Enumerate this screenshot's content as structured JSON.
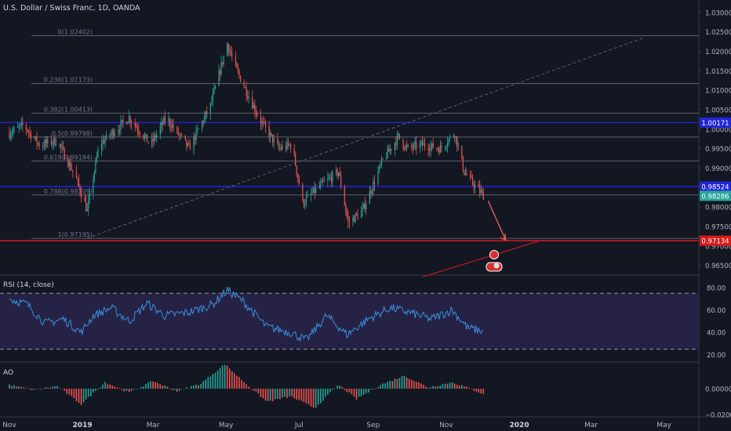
{
  "header": {
    "title": "U.S. Dollar / Swiss Franc, 1D, OANDA"
  },
  "colors": {
    "background": "#131722",
    "grid": "#1e2230",
    "up": "#26a69a",
    "down": "#ef5350",
    "fib": "#787b86",
    "fib_label": "#6f7490",
    "hline_blue": "#2124d9",
    "hline_red": "#d81919",
    "trendline_red": "#c2182b",
    "dashed_trend": "#5d606b",
    "rsi_line": "#3a8fd8",
    "rsi_band": "#2a2650",
    "ao_up": "#26a69a",
    "ao_down": "#ef5350",
    "text": "#b2b5be"
  },
  "price_axis": {
    "ticks": [
      "1.03000",
      "1.02500",
      "1.02000",
      "1.01500",
      "1.01000",
      "1.00500",
      "1.00000",
      "0.99500",
      "0.99000",
      "0.98500",
      "0.98000",
      "0.97500",
      "0.97000",
      "0.96500"
    ],
    "min": 0.9625,
    "max": 1.032
  },
  "tags": [
    {
      "label": "1.00171",
      "value": 1.00171,
      "bg": "#2124d9"
    },
    {
      "label": "0.98524",
      "value": 0.98524,
      "bg": "#2124d9"
    },
    {
      "label": "0.98286",
      "value": 0.98286,
      "bg": "#26a69a"
    },
    {
      "label": "0.97134",
      "value": 0.97134,
      "bg": "#d81919"
    }
  ],
  "fib_levels": [
    {
      "label": "0(1.02402)",
      "value": 1.02402
    },
    {
      "label": "0.236(1.01173)",
      "value": 1.01173
    },
    {
      "label": "0.382(1.00413)",
      "value": 1.00413
    },
    {
      "label": "0.5(0.99798)",
      "value": 0.99798
    },
    {
      "label": "0.618(0.99184)",
      "value": 0.99184
    },
    {
      "label": "0.786(0.98309)",
      "value": 0.98309
    },
    {
      "label": "1(0.97195)",
      "value": 0.97195
    }
  ],
  "time_axis": {
    "labels": [
      {
        "text": "Nov",
        "bold": false,
        "day": 0
      },
      {
        "text": "2019",
        "bold": true,
        "day": 61
      },
      {
        "text": "Mar",
        "bold": false,
        "day": 120
      },
      {
        "text": "May",
        "bold": false,
        "day": 181
      },
      {
        "text": "Jul",
        "bold": false,
        "day": 242
      },
      {
        "text": "Sep",
        "bold": false,
        "day": 304
      },
      {
        "text": "Nov",
        "bold": false,
        "day": 365
      },
      {
        "text": "2020",
        "bold": true,
        "day": 426
      },
      {
        "text": "Mar",
        "bold": false,
        "day": 486
      },
      {
        "text": "May",
        "bold": false,
        "day": 547
      }
    ]
  },
  "rsi": {
    "title": "RSI (14, close)",
    "ticks": [
      "80.00",
      "60.00",
      "40.00",
      "20.00"
    ],
    "upper": 75,
    "lower": 25
  },
  "ao": {
    "title": "AO",
    "ticks": [
      "0.00000",
      "−0.02000"
    ]
  },
  "chart_data": {
    "type": "candlestick",
    "title": "U.S. Dollar / Swiss Franc, 1D, OANDA",
    "anchors": [
      [
        0,
        0.999
      ],
      [
        12,
        1.001
      ],
      [
        25,
        0.996
      ],
      [
        40,
        0.997
      ],
      [
        55,
        0.988
      ],
      [
        65,
        0.979
      ],
      [
        75,
        0.996
      ],
      [
        100,
        1.003
      ],
      [
        118,
        0.996
      ],
      [
        131,
        1.003
      ],
      [
        150,
        0.995
      ],
      [
        168,
        1.006
      ],
      [
        182,
        1.022
      ],
      [
        190,
        1.015
      ],
      [
        210,
        1.002
      ],
      [
        225,
        0.995
      ],
      [
        236,
        0.996
      ],
      [
        245,
        0.981
      ],
      [
        258,
        0.985
      ],
      [
        275,
        0.989
      ],
      [
        283,
        0.976
      ],
      [
        295,
        0.979
      ],
      [
        312,
        0.992
      ],
      [
        325,
        0.998
      ],
      [
        332,
        0.995
      ],
      [
        345,
        0.996
      ],
      [
        360,
        0.995
      ],
      [
        372,
        0.999
      ],
      [
        380,
        0.989
      ],
      [
        390,
        0.985
      ],
      [
        396,
        0.983
      ]
    ],
    "rsi_anchors": [
      [
        0,
        70
      ],
      [
        15,
        65
      ],
      [
        30,
        48
      ],
      [
        45,
        52
      ],
      [
        60,
        40
      ],
      [
        70,
        55
      ],
      [
        85,
        62
      ],
      [
        100,
        50
      ],
      [
        115,
        66
      ],
      [
        130,
        55
      ],
      [
        150,
        58
      ],
      [
        170,
        65
      ],
      [
        182,
        78
      ],
      [
        195,
        68
      ],
      [
        215,
        45
      ],
      [
        235,
        40
      ],
      [
        248,
        33
      ],
      [
        265,
        55
      ],
      [
        282,
        38
      ],
      [
        300,
        52
      ],
      [
        318,
        62
      ],
      [
        334,
        58
      ],
      [
        352,
        52
      ],
      [
        370,
        60
      ],
      [
        383,
        44
      ],
      [
        396,
        41
      ]
    ],
    "ao_anchors": [
      [
        0,
        0.003
      ],
      [
        20,
        -0.001
      ],
      [
        40,
        0.002
      ],
      [
        60,
        -0.012
      ],
      [
        80,
        0.005
      ],
      [
        100,
        -0.003
      ],
      [
        120,
        0.006
      ],
      [
        140,
        -0.002
      ],
      [
        160,
        0.004
      ],
      [
        180,
        0.019
      ],
      [
        195,
        0.006
      ],
      [
        215,
        -0.01
      ],
      [
        235,
        -0.006
      ],
      [
        255,
        -0.015
      ],
      [
        275,
        0.003
      ],
      [
        290,
        -0.008
      ],
      [
        310,
        0.003
      ],
      [
        330,
        0.01
      ],
      [
        350,
        0.001
      ],
      [
        370,
        0.005
      ],
      [
        385,
        0.0
      ],
      [
        396,
        -0.004
      ]
    ],
    "last_day": 396,
    "projection": {
      "from": [
        396,
        0.9828
      ],
      "to": [
        412,
        0.9713
      ]
    },
    "red_trendline": {
      "from": [
        345,
        0.962
      ],
      "to": [
        445,
        0.9715
      ]
    },
    "dashed_trendline": {
      "from": [
        65,
        0.972
      ],
      "to": [
        530,
        1.0235
      ]
    }
  }
}
